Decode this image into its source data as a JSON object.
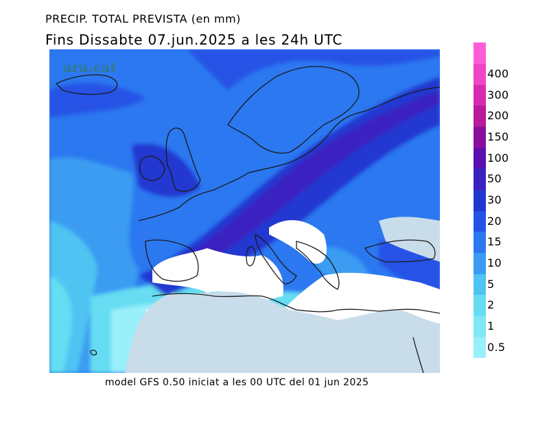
{
  "title_line1": "PRECIP. TOTAL PREVISTA (en mm)",
  "title_line2": "Fins Dissabte  07.jun.2025 a les 24h UTC",
  "watermark": "ara.cat",
  "footer": "model GFS 0.50 iniciat a les 00 UTC del 01 jun 2025",
  "legend": [
    {
      "label": "0.5",
      "color": "#99f0fa"
    },
    {
      "label": "1",
      "color": "#80e8f5"
    },
    {
      "label": "2",
      "color": "#66ddf2"
    },
    {
      "label": "5",
      "color": "#4fc3f2"
    },
    {
      "label": "10",
      "color": "#3a9cf2"
    },
    {
      "label": "15",
      "color": "#2b78f0"
    },
    {
      "label": "20",
      "color": "#2553e6"
    },
    {
      "label": "30",
      "color": "#2038d0"
    },
    {
      "label": "50",
      "color": "#3a22c0"
    },
    {
      "label": "100",
      "color": "#5a10b0"
    },
    {
      "label": "150",
      "color": "#8a0e9e"
    },
    {
      "label": "200",
      "color": "#b81a9a"
    },
    {
      "label": "300",
      "color": "#d82ab0"
    },
    {
      "label": "400",
      "color": "#ef44c6"
    },
    {
      "label": "",
      "color": "#ff5cd8"
    }
  ],
  "colors": {
    "dry_land": "#c9dcea",
    "coast": "#1a1a1a"
  }
}
